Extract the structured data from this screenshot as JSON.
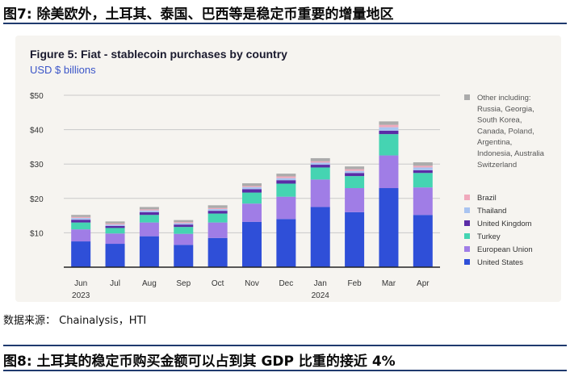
{
  "header": {
    "caption": "图7:  除美欧外，土耳其、泰国、巴西等是稳定币重要的增量地区"
  },
  "chart_data": {
    "type": "bar",
    "stacked": true,
    "title": "Figure 5: Fiat - stablecoin purchases by country",
    "subtitle": "USD $ billions",
    "xlabel": "",
    "ylabel": "USD $ billions",
    "ylim": [
      0,
      50
    ],
    "yticks": [
      10,
      20,
      30,
      40,
      50
    ],
    "ytick_labels": [
      "$10",
      "$20",
      "$30",
      "$40",
      "$50"
    ],
    "grid": true,
    "legend_position": "right",
    "categories": [
      "Jun",
      "Jul",
      "Aug",
      "Sep",
      "Oct",
      "Nov",
      "Dec",
      "Jan",
      "Feb",
      "Mar",
      "Apr"
    ],
    "category_sublabels": [
      "2023",
      "",
      "",
      "",
      "",
      "",
      "",
      "2024",
      "",
      "",
      ""
    ],
    "series": [
      {
        "name": "United States",
        "color": "#2f4fd8",
        "values": [
          7.5,
          6.8,
          9.0,
          6.5,
          8.5,
          13.2,
          14.0,
          17.5,
          16.0,
          23.0,
          15.2
        ]
      },
      {
        "name": "European Union",
        "color": "#a07de6",
        "values": [
          3.5,
          3.0,
          4.0,
          3.2,
          4.5,
          5.3,
          6.5,
          8.0,
          7.0,
          9.5,
          8.0
        ]
      },
      {
        "name": "Turkey",
        "color": "#45d4b2",
        "values": [
          2.0,
          1.6,
          2.2,
          2.0,
          2.6,
          3.2,
          3.8,
          3.5,
          3.5,
          6.2,
          4.2
        ]
      },
      {
        "name": "United Kingdom",
        "color": "#5b2ca6",
        "values": [
          0.8,
          0.6,
          0.8,
          0.7,
          0.8,
          1.0,
          1.0,
          0.8,
          0.9,
          1.0,
          0.8
        ]
      },
      {
        "name": "Thailand",
        "color": "#a9c4f0",
        "values": [
          0.5,
          0.4,
          0.5,
          0.4,
          0.5,
          0.6,
          0.6,
          0.6,
          0.6,
          1.0,
          0.8
        ]
      },
      {
        "name": "Brazil",
        "color": "#f0a9bc",
        "values": [
          0.3,
          0.3,
          0.3,
          0.3,
          0.3,
          0.3,
          0.5,
          0.4,
          0.5,
          0.7,
          0.5
        ]
      },
      {
        "name": "Other including: Russia, Georgia, South Korea, Canada, Poland, Argentina, Indonesia, Australia Switzerland",
        "color": "#ababab",
        "values": [
          0.6,
          0.6,
          0.7,
          0.6,
          0.8,
          0.8,
          0.8,
          0.9,
          0.8,
          1.0,
          1.0
        ]
      }
    ],
    "legend_other_lines": [
      "Other including:",
      "Russia, Georgia,",
      "South Korea,",
      "Canada, Poland,",
      "Argentina,",
      "Indonesia, Australia",
      "Switzerland"
    ]
  },
  "source": "数据来源： Chainalysis，HTI",
  "next_figure": {
    "caption": "图8:  土耳其的稳定币购买金额可以占到其 GDP 比重的接近 4%"
  }
}
